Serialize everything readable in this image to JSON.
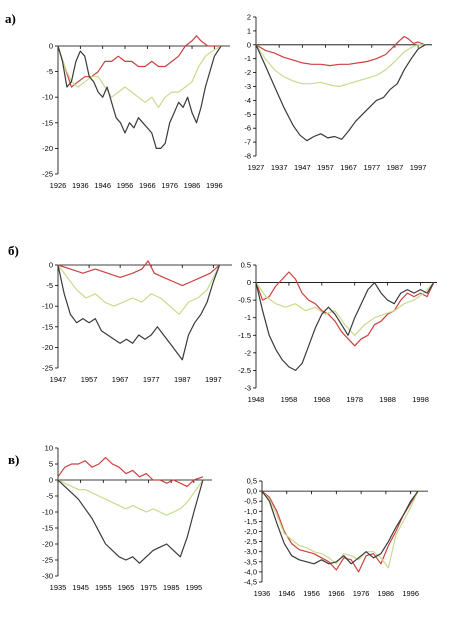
{
  "row_labels": [
    "а)",
    "б)",
    "в)"
  ],
  "colors": {
    "red": "#cc4040",
    "green": "#c6dc8c",
    "dark": "#3a3a3a",
    "axis": "#000000"
  },
  "chart_data": [
    {
      "type": "line",
      "ylim": [
        -25,
        0
      ],
      "yticks": [
        0,
        -5,
        -10,
        -15,
        -20,
        -25
      ],
      "xlim": [
        1926,
        2003
      ],
      "xticks": [
        1926,
        1936,
        1946,
        1956,
        1966,
        1976,
        1986,
        1996
      ],
      "series": [
        {
          "color": "red",
          "x": [
            1926,
            1929,
            1932,
            1935,
            1938,
            1941,
            1944,
            1947,
            1950,
            1953,
            1956,
            1959,
            1962,
            1965,
            1968,
            1971,
            1974,
            1977,
            1980,
            1983,
            1986,
            1988,
            1990,
            1993,
            1996,
            1999
          ],
          "y": [
            0,
            -4,
            -8,
            -7,
            -6,
            -6,
            -5,
            -3,
            -3,
            -2,
            -3,
            -3,
            -4,
            -4,
            -3,
            -4,
            -4,
            -3,
            -2,
            0,
            1,
            2,
            1,
            0,
            0,
            0
          ]
        },
        {
          "color": "green",
          "x": [
            1926,
            1929,
            1932,
            1935,
            1938,
            1941,
            1944,
            1947,
            1950,
            1953,
            1956,
            1959,
            1962,
            1965,
            1968,
            1971,
            1974,
            1977,
            1980,
            1983,
            1986,
            1989,
            1992,
            1995,
            1999
          ],
          "y": [
            0,
            -4,
            -7,
            -8,
            -7,
            -6,
            -6,
            -8,
            -10,
            -9,
            -8,
            -9,
            -10,
            -11,
            -10,
            -12,
            -10,
            -9,
            -9,
            -8,
            -7,
            -4,
            -2,
            -1,
            0
          ]
        },
        {
          "color": "dark",
          "x": [
            1926,
            1928,
            1930,
            1932,
            1934,
            1936,
            1938,
            1940,
            1942,
            1944,
            1946,
            1948,
            1950,
            1952,
            1954,
            1956,
            1958,
            1960,
            1962,
            1964,
            1966,
            1968,
            1970,
            1972,
            1974,
            1976,
            1978,
            1980,
            1982,
            1984,
            1986,
            1988,
            1990,
            1992,
            1994,
            1996,
            1999
          ],
          "y": [
            0,
            -3,
            -8,
            -7,
            -3,
            -1,
            -2,
            -6,
            -7,
            -9,
            -10,
            -8,
            -11,
            -14,
            -15,
            -17,
            -15,
            -16,
            -14,
            -15,
            -16,
            -17,
            -20,
            -20,
            -19,
            -15,
            -13,
            -11,
            -12,
            -10,
            -13,
            -15,
            -12,
            -8,
            -5,
            -2,
            0
          ]
        }
      ]
    },
    {
      "type": "line",
      "ylim": [
        -8,
        2
      ],
      "yticks": [
        2,
        1,
        0,
        -1,
        -2,
        -3,
        -4,
        -5,
        -6,
        -7,
        -8
      ],
      "xlim": [
        1927,
        2003
      ],
      "xticks": [
        1927,
        1937,
        1947,
        1957,
        1967,
        1977,
        1987,
        1997
      ],
      "series": [
        {
          "color": "red",
          "x": [
            1927,
            1931,
            1935,
            1939,
            1943,
            1947,
            1951,
            1955,
            1959,
            1963,
            1967,
            1971,
            1975,
            1979,
            1983,
            1986,
            1989,
            1991,
            1993,
            1995,
            1997,
            2000
          ],
          "y": [
            0,
            -0.4,
            -0.6,
            -0.9,
            -1.1,
            -1.3,
            -1.4,
            -1.4,
            -1.5,
            -1.4,
            -1.4,
            -1.3,
            -1.2,
            -1,
            -0.7,
            -0.2,
            0.3,
            0.6,
            0.4,
            0.1,
            0.2,
            0
          ]
        },
        {
          "color": "green",
          "x": [
            1927,
            1931,
            1935,
            1939,
            1943,
            1947,
            1951,
            1955,
            1959,
            1963,
            1967,
            1971,
            1975,
            1979,
            1983,
            1987,
            1991,
            1994,
            1997,
            2000
          ],
          "y": [
            0,
            -1,
            -1.8,
            -2.3,
            -2.6,
            -2.8,
            -2.8,
            -2.7,
            -2.9,
            -3,
            -2.8,
            -2.6,
            -2.4,
            -2.2,
            -1.8,
            -1.2,
            -0.5,
            -0.2,
            0,
            0
          ]
        },
        {
          "color": "dark",
          "x": [
            1927,
            1931,
            1935,
            1939,
            1943,
            1946,
            1949,
            1952,
            1955,
            1958,
            1961,
            1964,
            1967,
            1970,
            1973,
            1976,
            1979,
            1982,
            1985,
            1988,
            1991,
            1994,
            1997,
            2000
          ],
          "y": [
            0,
            -1.5,
            -3,
            -4.5,
            -5.8,
            -6.5,
            -6.9,
            -6.6,
            -6.4,
            -6.7,
            -6.6,
            -6.8,
            -6.2,
            -5.5,
            -5,
            -4.5,
            -4,
            -3.8,
            -3.2,
            -2.8,
            -1.8,
            -1,
            -0.3,
            0
          ]
        }
      ]
    },
    {
      "type": "line",
      "ylim": [
        -25,
        0
      ],
      "yticks": [
        0,
        -5,
        -10,
        -15,
        -20,
        -25
      ],
      "xlim": [
        1947,
        2003
      ],
      "xticks": [
        1947,
        1957,
        1967,
        1977,
        1987,
        1997
      ],
      "series": [
        {
          "color": "red",
          "x": [
            1947,
            1951,
            1955,
            1959,
            1963,
            1967,
            1971,
            1974,
            1976,
            1978,
            1981,
            1984,
            1987,
            1990,
            1993,
            1996,
            1999
          ],
          "y": [
            0,
            -1,
            -2,
            -1,
            -2,
            -3,
            -2,
            -1,
            1,
            -2,
            -3,
            -4,
            -5,
            -4,
            -3,
            -2,
            0
          ]
        },
        {
          "color": "green",
          "x": [
            1947,
            1950,
            1953,
            1956,
            1959,
            1962,
            1965,
            1968,
            1971,
            1974,
            1977,
            1980,
            1983,
            1986,
            1989,
            1992,
            1995,
            1999
          ],
          "y": [
            0,
            -3,
            -6,
            -8,
            -7,
            -9,
            -10,
            -9,
            -8,
            -9,
            -7,
            -8,
            -10,
            -12,
            -9,
            -8,
            -6,
            0
          ]
        },
        {
          "color": "dark",
          "x": [
            1947,
            1949,
            1951,
            1953,
            1955,
            1957,
            1959,
            1961,
            1963,
            1965,
            1967,
            1969,
            1971,
            1973,
            1975,
            1977,
            1979,
            1981,
            1983,
            1985,
            1987,
            1989,
            1991,
            1993,
            1995,
            1997,
            1999
          ],
          "y": [
            0,
            -7,
            -12,
            -14,
            -13,
            -14,
            -13,
            -16,
            -17,
            -18,
            -19,
            -18,
            -19,
            -17,
            -18,
            -17,
            -15,
            -17,
            -19,
            -21,
            -23,
            -17,
            -14,
            -12,
            -9,
            -4,
            0
          ]
        }
      ]
    },
    {
      "type": "line",
      "ylim": [
        -3,
        0.5
      ],
      "yticks": [
        0.5,
        0,
        -0.5,
        -1,
        -1.5,
        -2,
        -2.5,
        -3
      ],
      "xlim": [
        1948,
        2003
      ],
      "xticks": [
        1948,
        1958,
        1968,
        1978,
        1988,
        1998
      ],
      "series": [
        {
          "color": "red",
          "x": [
            1948,
            1950,
            1952,
            1954,
            1956,
            1958,
            1960,
            1962,
            1964,
            1966,
            1968,
            1970,
            1972,
            1974,
            1976,
            1978,
            1980,
            1982,
            1984,
            1986,
            1988,
            1990,
            1992,
            1994,
            1996,
            1998,
            2000,
            2002
          ],
          "y": [
            0,
            -0.5,
            -0.4,
            -0.1,
            0.1,
            0.3,
            0.1,
            -0.3,
            -0.5,
            -0.6,
            -0.8,
            -0.9,
            -1.1,
            -1.4,
            -1.6,
            -1.8,
            -1.6,
            -1.5,
            -1.2,
            -1.1,
            -0.9,
            -0.8,
            -0.5,
            -0.3,
            -0.4,
            -0.3,
            -0.4,
            0
          ]
        },
        {
          "color": "green",
          "x": [
            1948,
            1951,
            1954,
            1957,
            1960,
            1963,
            1966,
            1969,
            1972,
            1975,
            1978,
            1981,
            1984,
            1987,
            1990,
            1993,
            1996,
            1999,
            2002
          ],
          "y": [
            0,
            -0.4,
            -0.6,
            -0.7,
            -0.6,
            -0.8,
            -0.7,
            -0.9,
            -0.8,
            -1.2,
            -1.5,
            -1.2,
            -1,
            -0.9,
            -0.8,
            -0.6,
            -0.5,
            -0.3,
            0
          ]
        },
        {
          "color": "dark",
          "x": [
            1948,
            1950,
            1952,
            1954,
            1956,
            1958,
            1960,
            1962,
            1964,
            1966,
            1968,
            1970,
            1972,
            1974,
            1976,
            1978,
            1980,
            1982,
            1984,
            1986,
            1988,
            1990,
            1992,
            1994,
            1996,
            1998,
            2000,
            2002
          ],
          "y": [
            0,
            -0.8,
            -1.5,
            -1.9,
            -2.2,
            -2.4,
            -2.5,
            -2.3,
            -1.8,
            -1.3,
            -0.9,
            -0.7,
            -0.9,
            -1.2,
            -1.5,
            -1,
            -0.6,
            -0.2,
            0,
            -0.3,
            -0.5,
            -0.6,
            -0.3,
            -0.2,
            -0.3,
            -0.2,
            -0.3,
            0
          ]
        }
      ]
    },
    {
      "type": "line",
      "ylim": [
        -30,
        10
      ],
      "yticks": [
        10,
        5,
        0,
        -5,
        -10,
        -15,
        -20,
        -25,
        -30
      ],
      "xlim": [
        1935,
        2003
      ],
      "xticks": [
        1935,
        1945,
        1955,
        1965,
        1975,
        1985,
        1995
      ],
      "series": [
        {
          "color": "red",
          "x": [
            1935,
            1938,
            1941,
            1944,
            1947,
            1950,
            1953,
            1956,
            1959,
            1962,
            1965,
            1968,
            1971,
            1974,
            1977,
            1980,
            1983,
            1986,
            1989,
            1992,
            1995,
            1999
          ],
          "y": [
            1,
            4,
            5,
            5,
            6,
            4,
            5,
            7,
            5,
            4,
            2,
            3,
            1,
            2,
            0,
            0,
            -1,
            0,
            -1,
            -2,
            0,
            1
          ]
        },
        {
          "color": "green",
          "x": [
            1935,
            1938,
            1941,
            1944,
            1947,
            1950,
            1953,
            1956,
            1959,
            1962,
            1965,
            1968,
            1971,
            1974,
            1977,
            1980,
            1983,
            1986,
            1989,
            1992,
            1995,
            1999
          ],
          "y": [
            0,
            -1,
            -2,
            -3,
            -3,
            -4,
            -5,
            -6,
            -7,
            -8,
            -9,
            -8,
            -9,
            -10,
            -9,
            -10,
            -11,
            -10,
            -9,
            -7,
            -4,
            0
          ]
        },
        {
          "color": "dark",
          "x": [
            1935,
            1938,
            1941,
            1944,
            1947,
            1950,
            1953,
            1956,
            1959,
            1962,
            1965,
            1968,
            1971,
            1974,
            1977,
            1980,
            1983,
            1986,
            1989,
            1992,
            1995,
            1999
          ],
          "y": [
            0,
            -2,
            -4,
            -6,
            -9,
            -12,
            -16,
            -20,
            -22,
            -24,
            -25,
            -24,
            -26,
            -24,
            -22,
            -21,
            -20,
            -22,
            -24,
            -18,
            -10,
            0
          ]
        }
      ]
    },
    {
      "type": "line",
      "ylim": [
        -4.5,
        0.5
      ],
      "yticks": [
        0.5,
        0,
        -0.5,
        -1,
        -1.5,
        -2,
        -2.5,
        -3,
        -3.5,
        -4,
        -4.5
      ],
      "ytick_labels": [
        "0,5",
        "0,0",
        "-0,5",
        "-1,0",
        "-1,5",
        "-2,0",
        "-2,5",
        "-3,0",
        "-3,5",
        "-4,0",
        "-4,5"
      ],
      "xlim": [
        1936,
        2003
      ],
      "xticks": [
        1936,
        1946,
        1956,
        1966,
        1976,
        1986,
        1996
      ],
      "series": [
        {
          "color": "red",
          "x": [
            1936,
            1939,
            1942,
            1945,
            1948,
            1951,
            1954,
            1957,
            1960,
            1963,
            1966,
            1969,
            1972,
            1975,
            1978,
            1981,
            1984,
            1987,
            1990,
            1993,
            1996,
            1999
          ],
          "y": [
            0,
            -0.3,
            -1,
            -2,
            -2.6,
            -2.9,
            -3,
            -3.1,
            -3.3,
            -3.5,
            -3.9,
            -3.3,
            -3.4,
            -4,
            -3.2,
            -3.1,
            -3.6,
            -2.7,
            -2,
            -1.2,
            -0.6,
            0
          ]
        },
        {
          "color": "green",
          "x": [
            1936,
            1939,
            1942,
            1945,
            1948,
            1951,
            1954,
            1957,
            1960,
            1963,
            1966,
            1969,
            1972,
            1975,
            1978,
            1981,
            1984,
            1987,
            1990,
            1993,
            1996,
            1999
          ],
          "y": [
            0,
            -0.4,
            -1.2,
            -2.1,
            -2.4,
            -2.7,
            -2.8,
            -3,
            -3.1,
            -3.3,
            -3.6,
            -3.1,
            -3.2,
            -3.4,
            -3,
            -3,
            -3.3,
            -3.8,
            -2.2,
            -1.5,
            -0.8,
            0
          ]
        },
        {
          "color": "dark",
          "x": [
            1936,
            1939,
            1942,
            1945,
            1948,
            1951,
            1954,
            1957,
            1960,
            1963,
            1966,
            1969,
            1972,
            1975,
            1978,
            1981,
            1984,
            1987,
            1990,
            1993,
            1996,
            1999
          ],
          "y": [
            0,
            -0.5,
            -1.6,
            -2.6,
            -3.2,
            -3.4,
            -3.5,
            -3.6,
            -3.4,
            -3.6,
            -3.5,
            -3.2,
            -3.6,
            -3.3,
            -3,
            -3.3,
            -3.1,
            -2.5,
            -1.8,
            -1.2,
            -0.5,
            0
          ]
        }
      ]
    }
  ]
}
